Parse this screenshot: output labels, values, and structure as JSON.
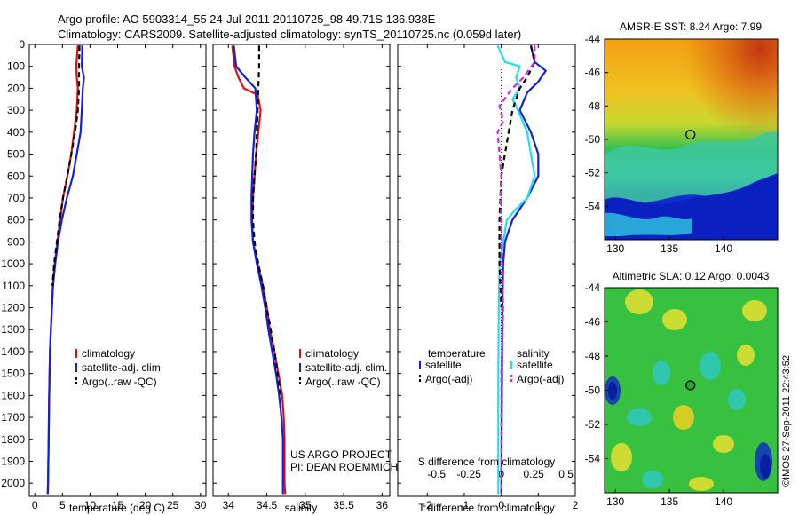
{
  "header": {
    "title_line1": "Argo profile: AO 5903314_55 24-Jul-2011 20110725_98 49.71S 136.938E",
    "title_line2": "Climatology: CARS2009. Satellite-adjusted climatology: synTS_20110725.nc (0.059d later)"
  },
  "watermark": "©IMOS 27-Sep-2011 22:43:52",
  "colors": {
    "red": "#e01010",
    "blue": "#1020e0",
    "black": "#000000",
    "cyan": "#20e0f0",
    "magenta": "#e020e0"
  },
  "chart_data": [
    {
      "type": "line",
      "id": "temperature",
      "xlabel": "temperature (deg C)",
      "xlim": [
        -1,
        31
      ],
      "xticks": [
        0,
        5,
        10,
        15,
        20,
        25,
        30
      ],
      "ylim": [
        0,
        2060
      ],
      "yticks": [
        0,
        100,
        200,
        300,
        400,
        500,
        600,
        700,
        800,
        900,
        1000,
        1100,
        1200,
        1300,
        1400,
        1500,
        1600,
        1700,
        1800,
        1900,
        2000
      ],
      "legend": [
        "climatology",
        "satellite-adj. clim.",
        "Argo(..raw -QC)"
      ],
      "series": [
        {
          "name": "climatology",
          "color": "red",
          "dash": false,
          "points": [
            [
              7.8,
              5
            ],
            [
              7.5,
              100
            ],
            [
              7.6,
              150
            ],
            [
              7.8,
              200
            ],
            [
              7.6,
              300
            ],
            [
              7.1,
              400
            ],
            [
              6.6,
              500
            ],
            [
              5.9,
              600
            ],
            [
              5.1,
              700
            ],
            [
              4.6,
              800
            ],
            [
              4.1,
              900
            ],
            [
              3.6,
              1000
            ],
            [
              3.3,
              1100
            ],
            [
              3.1,
              1200
            ],
            [
              2.9,
              1300
            ],
            [
              2.75,
              1400
            ],
            [
              2.6,
              1600
            ],
            [
              2.5,
              1800
            ],
            [
              2.4,
              2000
            ],
            [
              2.35,
              2050
            ]
          ]
        },
        {
          "name": "satellite-adj. clim.",
          "color": "blue",
          "dash": false,
          "points": [
            [
              8.6,
              5
            ],
            [
              8.5,
              100
            ],
            [
              8.9,
              150
            ],
            [
              8.7,
              200
            ],
            [
              8.5,
              300
            ],
            [
              8.3,
              400
            ],
            [
              7.6,
              500
            ],
            [
              6.9,
              600
            ],
            [
              5.8,
              700
            ],
            [
              4.9,
              800
            ],
            [
              4.2,
              900
            ],
            [
              3.7,
              1000
            ],
            [
              3.3,
              1100
            ],
            [
              3.1,
              1200
            ],
            [
              2.9,
              1300
            ],
            [
              2.75,
              1400
            ],
            [
              2.6,
              1600
            ],
            [
              2.5,
              1800
            ],
            [
              2.4,
              2000
            ],
            [
              2.35,
              2050
            ]
          ]
        },
        {
          "name": "Argo(..raw -QC)",
          "color": "black",
          "dash": true,
          "points": [
            [
              8.1,
              5
            ],
            [
              8.0,
              100
            ],
            [
              8.0,
              200
            ],
            [
              7.8,
              300
            ],
            [
              7.3,
              400
            ],
            [
              6.6,
              500
            ],
            [
              5.9,
              600
            ],
            [
              5.1,
              700
            ],
            [
              4.5,
              800
            ],
            [
              4.0,
              900
            ],
            [
              3.5,
              1000
            ],
            [
              3.2,
              1100
            ]
          ]
        }
      ]
    },
    {
      "type": "line",
      "id": "salinity",
      "xlabel": "salinity",
      "xlim": [
        33.8,
        36.1
      ],
      "xticks": [
        34,
        34.5,
        35,
        35.5,
        36
      ],
      "ylim": [
        0,
        2060
      ],
      "legend": [
        "climatology",
        "satellite-adj. clim.",
        "Argo(..raw -QC)"
      ],
      "annotation": [
        "US ARGO PROJECT",
        "PI: DEAN ROEMMICH"
      ],
      "series": [
        {
          "name": "climatology",
          "color": "red",
          "dash": false,
          "points": [
            [
              34.05,
              5
            ],
            [
              34.08,
              100
            ],
            [
              34.13,
              150
            ],
            [
              34.2,
              200
            ],
            [
              34.38,
              230
            ],
            [
              34.42,
              300
            ],
            [
              34.39,
              400
            ],
            [
              34.36,
              500
            ],
            [
              34.34,
              600
            ],
            [
              34.32,
              700
            ],
            [
              34.31,
              800
            ],
            [
              34.32,
              900
            ],
            [
              34.38,
              1000
            ],
            [
              34.45,
              1100
            ],
            [
              34.5,
              1200
            ],
            [
              34.54,
              1300
            ],
            [
              34.6,
              1400
            ],
            [
              34.65,
              1500
            ],
            [
              34.7,
              1600
            ],
            [
              34.72,
              1700
            ],
            [
              34.73,
              1800
            ],
            [
              34.73,
              1900
            ],
            [
              34.73,
              2000
            ],
            [
              34.74,
              2050
            ]
          ]
        },
        {
          "name": "satellite-adj. clim.",
          "color": "blue",
          "dash": false,
          "points": [
            [
              34.07,
              5
            ],
            [
              34.1,
              100
            ],
            [
              34.22,
              150
            ],
            [
              34.35,
              200
            ],
            [
              34.37,
              300
            ],
            [
              34.34,
              400
            ],
            [
              34.32,
              500
            ],
            [
              34.31,
              600
            ],
            [
              34.3,
              700
            ],
            [
              34.3,
              800
            ],
            [
              34.32,
              900
            ],
            [
              34.37,
              1000
            ],
            [
              34.43,
              1100
            ],
            [
              34.48,
              1200
            ],
            [
              34.52,
              1300
            ],
            [
              34.57,
              1400
            ],
            [
              34.62,
              1500
            ],
            [
              34.66,
              1600
            ],
            [
              34.69,
              1700
            ],
            [
              34.71,
              1800
            ],
            [
              34.71,
              1900
            ],
            [
              34.71,
              2000
            ],
            [
              34.71,
              2050
            ]
          ]
        },
        {
          "name": "Argo(..raw -QC)",
          "color": "black",
          "dash": true,
          "points": [
            [
              34.4,
              5
            ],
            [
              34.4,
              100
            ],
            [
              34.39,
              200
            ],
            [
              34.38,
              300
            ],
            [
              34.37,
              400
            ],
            [
              34.36,
              500
            ],
            [
              34.34,
              600
            ],
            [
              34.32,
              700
            ],
            [
              34.32,
              800
            ],
            [
              34.34,
              900
            ],
            [
              34.39,
              1000
            ],
            [
              34.45,
              1100
            ],
            [
              34.5,
              1200
            ],
            [
              34.55,
              1300
            ],
            [
              34.6,
              1400
            ],
            [
              34.64,
              1500
            ],
            [
              34.68,
              1600
            ]
          ]
        }
      ]
    },
    {
      "type": "line",
      "id": "difference",
      "xlabel": "T difference from climatology",
      "xlim": [
        -2.8,
        2.0
      ],
      "xticks": [
        -2,
        -1,
        0,
        1,
        2
      ],
      "xticklabels": [
        "-2",
        "-1",
        "0",
        "1",
        "2"
      ],
      "secondary_axis_label": "S difference from climatology",
      "secondary_ticklabels": [
        "-0.5",
        "-0.25",
        "0",
        "0.25",
        "0.5"
      ],
      "ylim": [
        0,
        2060
      ],
      "legend_titles": [
        "temperature",
        "salinity"
      ],
      "legend": [
        "satellite",
        "Argo(-adj)",
        "satellite",
        "Argo(-adj)"
      ],
      "series": [
        {
          "name": "temperature satellite",
          "color": "blue",
          "dash": false,
          "points": [
            [
              0.8,
              5
            ],
            [
              0.9,
              80
            ],
            [
              1.2,
              120
            ],
            [
              1.0,
              170
            ],
            [
              0.7,
              220
            ],
            [
              0.5,
              300
            ],
            [
              0.8,
              400
            ],
            [
              1.0,
              500
            ],
            [
              1.0,
              600
            ],
            [
              0.7,
              700
            ],
            [
              0.3,
              800
            ],
            [
              0.1,
              900
            ],
            [
              0.05,
              1000
            ],
            [
              0.03,
              1200
            ],
            [
              0.02,
              1500
            ],
            [
              0.0,
              2050
            ]
          ]
        },
        {
          "name": "salinity satellite",
          "color": "cyan",
          "dash": false,
          "points": [
            [
              -0.1,
              5
            ],
            [
              0.1,
              80
            ],
            [
              0.5,
              100
            ],
            [
              0.4,
              150
            ],
            [
              0.5,
              200
            ],
            [
              0.3,
              250
            ],
            [
              0.45,
              300
            ],
            [
              0.7,
              400
            ],
            [
              0.8,
              500
            ],
            [
              0.9,
              600
            ],
            [
              0.7,
              700
            ],
            [
              0.4,
              750
            ],
            [
              0.15,
              800
            ],
            [
              0.05,
              900
            ],
            [
              -0.05,
              1000
            ],
            [
              -0.07,
              1200
            ],
            [
              -0.08,
              1500
            ],
            [
              -0.08,
              2050
            ]
          ]
        },
        {
          "name": "temperature Argo(-adj)",
          "color": "black",
          "dash": true,
          "points": [
            [
              0.8,
              5
            ],
            [
              0.9,
              80
            ],
            [
              0.7,
              150
            ],
            [
              0.5,
              200
            ],
            [
              0.3,
              300
            ],
            [
              0.2,
              400
            ],
            [
              0.1,
              500
            ],
            [
              0.0,
              600
            ],
            [
              -0.05,
              800
            ],
            [
              -0.05,
              1000
            ],
            [
              0.0,
              1200
            ]
          ]
        },
        {
          "name": "salinity Argo(-adj)",
          "color": "magenta",
          "dash": true,
          "points": [
            [
              0.9,
              5
            ],
            [
              0.9,
              80
            ],
            [
              0.6,
              150
            ],
            [
              0.3,
              200
            ],
            [
              -0.05,
              280
            ],
            [
              0.05,
              350
            ],
            [
              -0.1,
              400
            ],
            [
              -0.05,
              500
            ],
            [
              0.0,
              600
            ],
            [
              -0.02,
              700
            ],
            [
              0.0,
              800
            ],
            [
              0.02,
              1000
            ],
            [
              0.05,
              1200
            ],
            [
              0.0,
              1500
            ],
            [
              0.0,
              2050
            ]
          ]
        }
      ]
    },
    {
      "type": "heatmap",
      "id": "sst_map",
      "title": "AMSR-E SST: 8.24 Argo: 7.99",
      "xlim": [
        129,
        145
      ],
      "ylim": [
        -56,
        -44
      ],
      "xticks": [
        130,
        135,
        140
      ],
      "yticks": [
        -44,
        -46,
        -48,
        -50,
        -52,
        -54
      ],
      "marker": {
        "lon": 136.938,
        "lat": -49.71,
        "style": "open-circle"
      }
    },
    {
      "type": "heatmap",
      "id": "sla_map",
      "title": "Altimetric SLA: 0.12 Argo: 0.0043",
      "xlim": [
        129,
        145
      ],
      "ylim": [
        -56,
        -44
      ],
      "xticks": [
        130,
        135,
        140
      ],
      "yticks": [
        -44,
        -46,
        -48,
        -50,
        -52,
        -54
      ],
      "marker": {
        "lon": 136.938,
        "lat": -49.71,
        "style": "filled-green-circle"
      }
    }
  ]
}
